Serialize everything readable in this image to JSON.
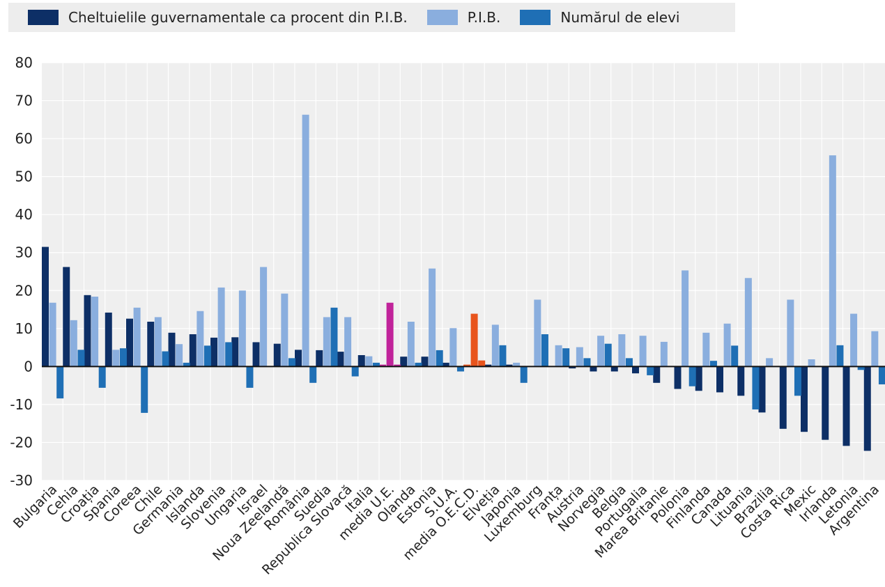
{
  "colors": {
    "gov": "#0d2f66",
    "gdp": "#8aaede",
    "students": "#1f6fb5",
    "eu_highlight": "#c0239a",
    "oecd_highlight": "#e8541c",
    "plot_bg": "#efefef",
    "grid": "#ffffff",
    "zero_line": "#111111"
  },
  "legend": {
    "items": [
      {
        "label": "Cheltuielile guvernamentale ca procent din P.I.B.",
        "color_key": "gov"
      },
      {
        "label": "P.I.B.",
        "color_key": "gdp"
      },
      {
        "label": "Numărul de elevi",
        "color_key": "students"
      }
    ],
    "placement": "top-left"
  },
  "chart_data": {
    "type": "bar",
    "ylim": [
      -30,
      80
    ],
    "yticks": [
      80,
      70,
      60,
      50,
      40,
      30,
      20,
      10,
      0,
      -10,
      -20,
      -30
    ],
    "grid": true,
    "categories": [
      "Bulgaria",
      "Cehia",
      "Croația",
      "Spania",
      "Coreea",
      "Chile",
      "Germania",
      "Islanda",
      "Slovenia",
      "Ungaria",
      "Israel",
      "Noua Zeelandă",
      "România",
      "Suedia",
      "Republica Slovacă",
      "Italia",
      "media U.E.",
      "Olanda",
      "Estonia",
      "S.U.A.",
      "media O.E.C.D.",
      "Elveția",
      "Japonia",
      "Luxemburg",
      "Franța",
      "Austria",
      "Norvegia",
      "Belgia",
      "Portugalia",
      "Marea Britanie",
      "Polonia",
      "Finlanda",
      "Canada",
      "Lituania",
      "Brazilia",
      "Costa Rica",
      "Mexic",
      "Irlanda",
      "Letonia",
      "Argentina"
    ],
    "series": [
      {
        "name": "Cheltuielile guvernamentale ca procent din P.I.B.",
        "color_key": "gov",
        "values": [
          31.5,
          26.2,
          18.8,
          14.2,
          12.6,
          11.8,
          8.9,
          8.5,
          7.6,
          7.7,
          6.4,
          6.0,
          4.4,
          4.3,
          3.9,
          3.0,
          0.5,
          2.6,
          2.6,
          1.0,
          0.5,
          0.5,
          0.5,
          0.0,
          -0.1,
          -0.5,
          -1.3,
          -1.3,
          -1.8,
          -4.3,
          -5.9,
          -6.4,
          -6.8,
          -7.7,
          -12.1,
          -16.4,
          -17.2,
          -19.3,
          -20.9,
          -22.2
        ]
      },
      {
        "name": "P.I.B.",
        "color_key": "gdp",
        "values": [
          16.8,
          12.2,
          18.4,
          4.4,
          15.5,
          13.0,
          5.9,
          14.6,
          20.8,
          20.0,
          26.2,
          19.2,
          66.3,
          13.0,
          13.0,
          2.7,
          16.8,
          11.8,
          25.8,
          10.1,
          13.9,
          11.0,
          1.0,
          17.6,
          5.6,
          5.1,
          8.1,
          8.5,
          8.1,
          6.5,
          25.3,
          8.9,
          11.3,
          23.3,
          2.2,
          17.6,
          1.9,
          55.6,
          13.9,
          9.3
        ]
      },
      {
        "name": "Numărul de elevi",
        "color_key": "students",
        "values": [
          -8.4,
          4.4,
          -5.6,
          4.8,
          -12.2,
          4.0,
          1.0,
          5.5,
          6.4,
          -5.6,
          0.0,
          2.2,
          -4.3,
          15.5,
          -2.6,
          1.0,
          0.5,
          1.0,
          4.3,
          -1.3,
          1.6,
          5.6,
          -4.3,
          8.5,
          4.8,
          2.2,
          6.0,
          2.2,
          -2.3,
          0.0,
          -5.2,
          1.5,
          5.5,
          -11.3,
          0.0,
          -7.7,
          0.0,
          5.6,
          -0.9,
          -4.7
        ]
      }
    ],
    "highlights": {
      "media U.E.": "eu_highlight",
      "media O.E.C.D.": "oecd_highlight"
    }
  }
}
